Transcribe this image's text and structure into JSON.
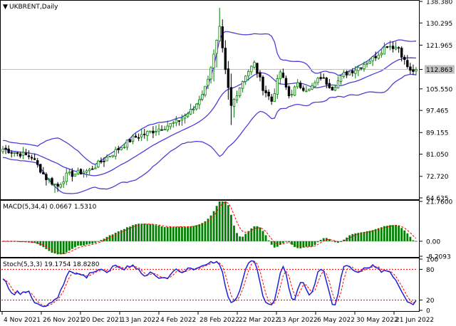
{
  "chart_data": [
    {
      "type": "candlestick",
      "title": "UKBRENT,Daily",
      "title_marker": "▼",
      "y_ticks": [
        "138.380",
        "130.295",
        "121.965",
        "112.863",
        "105.550",
        "97.465",
        "89.155",
        "81.050",
        "72.720",
        "64.635"
      ],
      "ylim": [
        64.635,
        138.38
      ],
      "current_price": 112.863,
      "colors": {
        "up": "#008000",
        "down": "#000000",
        "bands": "#4b3fd8",
        "price_line": "#c0c0c0"
      },
      "indicator": "Bollinger Bands"
    },
    {
      "type": "bar",
      "title": "MACD(5,34,4) 0.0667 1.5310",
      "y_ticks": [
        "21.7600",
        "0.00",
        "-8.2093"
      ],
      "ylim": [
        -8.2093,
        21.76
      ],
      "colors": {
        "histogram": "#008000",
        "signal": "#ff0000"
      }
    },
    {
      "type": "line",
      "title": "Stoch(5,3,3) 19.1754 18.8280",
      "y_ticks": [
        "100",
        "80",
        "20",
        "0"
      ],
      "ylim": [
        0,
        100
      ],
      "levels": [
        80,
        20
      ],
      "colors": {
        "main": "#1f1fd8",
        "signal": "#ff0000"
      }
    }
  ],
  "x_axis": {
    "labels": [
      "4 Nov 2021",
      "26 Nov 2021",
      "20 Dec 2021",
      "13 Jan 2022",
      "4 Feb 2022",
      "28 Feb 2022",
      "22 Mar 2022",
      "13 Apr 2022",
      "6 May 2022",
      "30 May 2022",
      "21 Jun 2022"
    ]
  }
}
